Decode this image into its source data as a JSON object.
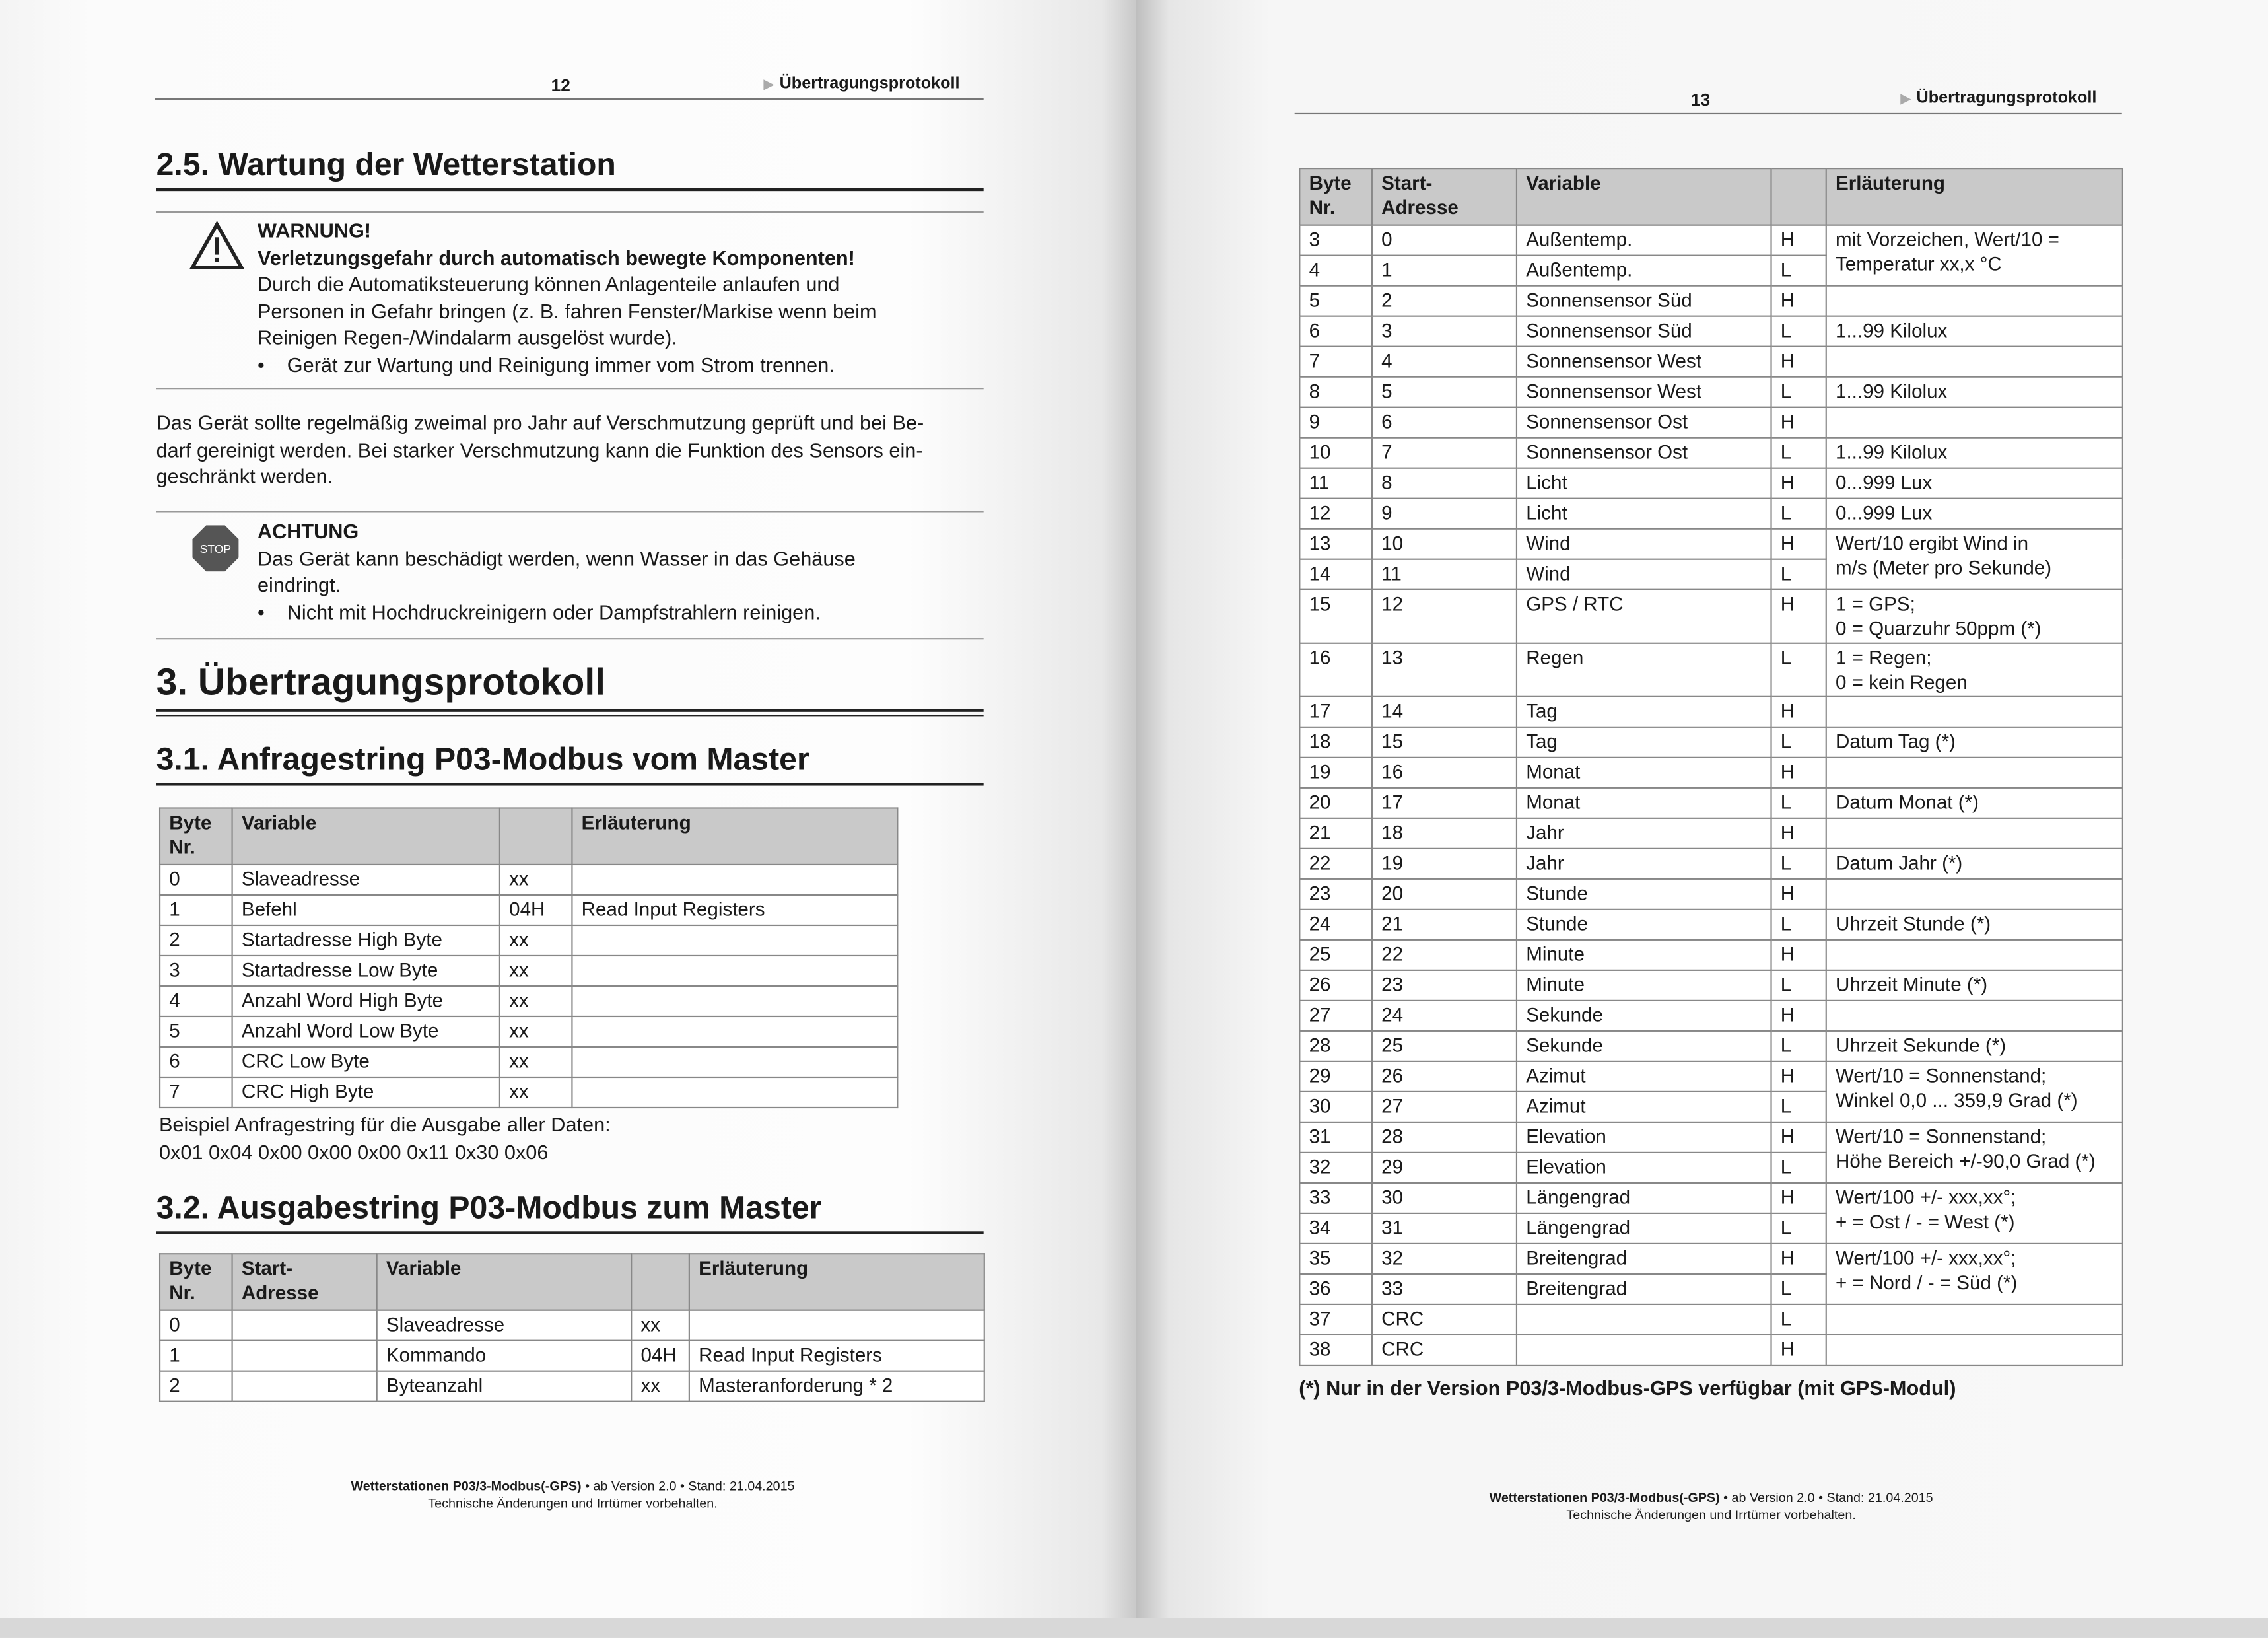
{
  "left_page": {
    "page_number": "12",
    "running_header": "Übertragungsprotokoll",
    "section_2_5": "2.5.  Wartung der Wetterstation",
    "warning": {
      "title": "WARNUNG!",
      "subtitle": "Verletzungsgefahr durch automatisch bewegte Komponenten!",
      "lines": [
        "Durch die Automatiksteuerung können Anlagenteile anlaufen und",
        "Personen in Gefahr bringen (z. B. fahren Fenster/Markise wenn beim",
        "Reinigen Regen-/Windalarm ausgelöst wurde)."
      ],
      "bullet": "Gerät zur Wartung und Reinigung immer vom Strom trennen."
    },
    "paragraph": [
      "Das Gerät sollte regelmäßig zweimal pro Jahr auf Verschmutzung geprüft und bei Be-",
      "darf gereinigt werden. Bei starker Verschmutzung kann die Funktion des Sensors ein-",
      "geschränkt werden."
    ],
    "attention": {
      "icon_label": "STOP",
      "title": "ACHTUNG",
      "lines": [
        "Das Gerät kann beschädigt werden, wenn Wasser in das Gehäuse",
        "eindringt."
      ],
      "bullet": "Nicht mit Hochdruckreinigern oder Dampfstrahlern reinigen."
    },
    "section_3": "3.    Übertragungsprotokoll",
    "section_3_1": "3.1.  Anfragestring P03-Modbus vom Master",
    "table1": {
      "headers": [
        "Byte Nr.",
        "Variable",
        "",
        "Erläuterung"
      ],
      "rows": [
        [
          "0",
          "Slaveadresse",
          "xx",
          ""
        ],
        [
          "1",
          "Befehl",
          "04H",
          "Read Input Registers"
        ],
        [
          "2",
          "Startadresse High Byte",
          "xx",
          ""
        ],
        [
          "3",
          "Startadresse Low Byte",
          "xx",
          ""
        ],
        [
          "4",
          "Anzahl  Word  High Byte",
          "xx",
          ""
        ],
        [
          "5",
          "Anzahl  Word  Low Byte",
          "xx",
          ""
        ],
        [
          "6",
          "CRC Low Byte",
          "xx",
          ""
        ],
        [
          "7",
          "CRC High Byte",
          "xx",
          ""
        ]
      ]
    },
    "example_label": "Beispiel Anfragestring für die Ausgabe aller Daten:",
    "example_value": "0x01 0x04 0x00 0x00 0x00 0x11 0x30 0x06",
    "section_3_2": "3.2.  Ausgabestring P03-Modbus zum Master",
    "table2": {
      "headers": [
        "Byte Nr.",
        "Start-Adresse",
        "Variable",
        "",
        "Erläuterung"
      ],
      "rows": [
        [
          "0",
          "",
          "Slaveadresse",
          "xx",
          ""
        ],
        [
          "1",
          "",
          "Kommando",
          "04H",
          "Read Input Registers"
        ],
        [
          "2",
          "",
          "Byteanzahl",
          "xx",
          "Masteranforderung * 2"
        ]
      ]
    },
    "footer": {
      "line1_bold": "Wetterstationen P03/3-Modbus(-GPS)",
      "line1_rest": " • ab Version 2.0 • Stand: 21.04.2015",
      "line2": "Technische Änderungen und Irrtümer vorbehalten."
    }
  },
  "right_page": {
    "page_number": "13",
    "running_header": "Übertragungsprotokoll",
    "table": {
      "headers": [
        "Byte Nr.",
        "Start-Adresse",
        "Variable",
        "",
        "Erläuterung"
      ],
      "rows": [
        [
          "3",
          "0",
          "Außentemp.",
          "H"
        ],
        [
          "4",
          "1",
          "Außentemp.",
          "L"
        ],
        [
          "5",
          "2",
          "Sonnensensor Süd",
          "H"
        ],
        [
          "6",
          "3",
          "Sonnensensor Süd",
          "L"
        ],
        [
          "7",
          "4",
          "Sonnensensor West",
          "H"
        ],
        [
          "8",
          "5",
          "Sonnensensor West",
          "L"
        ],
        [
          "9",
          "6",
          "Sonnensensor Ost",
          "H"
        ],
        [
          "10",
          "7",
          "Sonnensensor Ost",
          "L"
        ],
        [
          "11",
          "8",
          "Licht",
          "H"
        ],
        [
          "12",
          "9",
          "Licht",
          "L"
        ],
        [
          "13",
          "10",
          "Wind",
          "H"
        ],
        [
          "14",
          "11",
          "Wind",
          "L"
        ],
        [
          "15",
          "12",
          "GPS / RTC",
          "H"
        ],
        [
          "16",
          "13",
          "Regen",
          "L"
        ],
        [
          "17",
          "14",
          "Tag",
          "H"
        ],
        [
          "18",
          "15",
          "Tag",
          "L"
        ],
        [
          "19",
          "16",
          "Monat",
          "H"
        ],
        [
          "20",
          "17",
          "Monat",
          "L"
        ],
        [
          "21",
          "18",
          "Jahr",
          "H"
        ],
        [
          "22",
          "19",
          "Jahr",
          "L"
        ],
        [
          "23",
          "20",
          "Stunde",
          "H"
        ],
        [
          "24",
          "21",
          "Stunde",
          "L"
        ],
        [
          "25",
          "22",
          "Minute",
          "H"
        ],
        [
          "26",
          "23",
          "Minute",
          "L"
        ],
        [
          "27",
          "24",
          "Sekunde",
          "H"
        ],
        [
          "28",
          "25",
          "Sekunde",
          "L"
        ],
        [
          "29",
          "26",
          "Azimut",
          "H"
        ],
        [
          "30",
          "27",
          "Azimut",
          "L"
        ],
        [
          "31",
          "28",
          "Elevation",
          "H"
        ],
        [
          "32",
          "29",
          "Elevation",
          "L"
        ],
        [
          "33",
          "30",
          "Längengrad",
          "H"
        ],
        [
          "34",
          "31",
          "Längengrad",
          "L"
        ],
        [
          "35",
          "32",
          "Breitengrad",
          "H"
        ],
        [
          "36",
          "33",
          "Breitengrad",
          "L"
        ],
        [
          "37",
          "CRC",
          "",
          "L"
        ],
        [
          "38",
          "CRC",
          "",
          "H"
        ]
      ],
      "notes": [
        {
          "rows": 2,
          "lines": [
            "mit Vorzeichen, Wert/10  =",
            "Temperatur xx,x °C"
          ]
        },
        {
          "rows": 1,
          "lines": []
        },
        {
          "rows": 1,
          "lines": [
            "1...99 Kilolux"
          ]
        },
        {
          "rows": 1,
          "lines": []
        },
        {
          "rows": 1,
          "lines": [
            "1...99 Kilolux"
          ]
        },
        {
          "rows": 1,
          "lines": []
        },
        {
          "rows": 1,
          "lines": [
            "1...99 Kilolux"
          ]
        },
        {
          "rows": 1,
          "lines": [
            "0...999 Lux"
          ]
        },
        {
          "rows": 1,
          "lines": [
            "0...999 Lux"
          ]
        },
        {
          "rows": 2,
          "lines": [
            "Wert/10 ergibt Wind in",
            "m/s  (Meter pro Sekunde)"
          ]
        },
        {
          "rows": 1,
          "lines": [
            "1 = GPS;",
            "0 = Quarzuhr 50ppm (*)"
          ]
        },
        {
          "rows": 1,
          "lines": [
            "1 = Regen;",
            "0 = kein Regen"
          ]
        },
        {
          "rows": 1,
          "lines": []
        },
        {
          "rows": 1,
          "lines": [
            "Datum Tag (*)"
          ]
        },
        {
          "rows": 1,
          "lines": []
        },
        {
          "rows": 1,
          "lines": [
            "Datum Monat (*)"
          ]
        },
        {
          "rows": 1,
          "lines": []
        },
        {
          "rows": 1,
          "lines": [
            "Datum Jahr (*)"
          ]
        },
        {
          "rows": 1,
          "lines": []
        },
        {
          "rows": 1,
          "lines": [
            "Uhrzeit Stunde (*)"
          ]
        },
        {
          "rows": 1,
          "lines": []
        },
        {
          "rows": 1,
          "lines": [
            "Uhrzeit Minute (*)"
          ]
        },
        {
          "rows": 1,
          "lines": []
        },
        {
          "rows": 1,
          "lines": [
            "Uhrzeit Sekunde (*)"
          ]
        },
        {
          "rows": 2,
          "lines": [
            "Wert/10 = Sonnenstand;",
            "Winkel 0,0 ... 359,9 Grad (*)"
          ]
        },
        {
          "rows": 2,
          "lines": [
            "Wert/10 = Sonnenstand;",
            "Höhe Bereich +/-90,0 Grad (*)"
          ]
        },
        {
          "rows": 2,
          "lines": [
            "Wert/100  +/- xxx,xx°;",
            "+ = Ost / - = West (*)"
          ]
        },
        {
          "rows": 2,
          "lines": [
            "Wert/100   +/- xxx,xx°;",
            "+ = Nord  / - = Süd (*)"
          ]
        },
        {
          "rows": 1,
          "lines": []
        },
        {
          "rows": 1,
          "lines": []
        }
      ]
    },
    "footnote": "(*) Nur in der Version P03/3-Modbus-GPS verfügbar (mit GPS-Modul)",
    "footer": {
      "line1_bold": "Wetterstationen P03/3-Modbus(-GPS)",
      "line1_rest": " • ab Version 2.0 • Stand: 21.04.2015",
      "line2": "Technische Änderungen und Irrtümer vorbehalten."
    }
  }
}
